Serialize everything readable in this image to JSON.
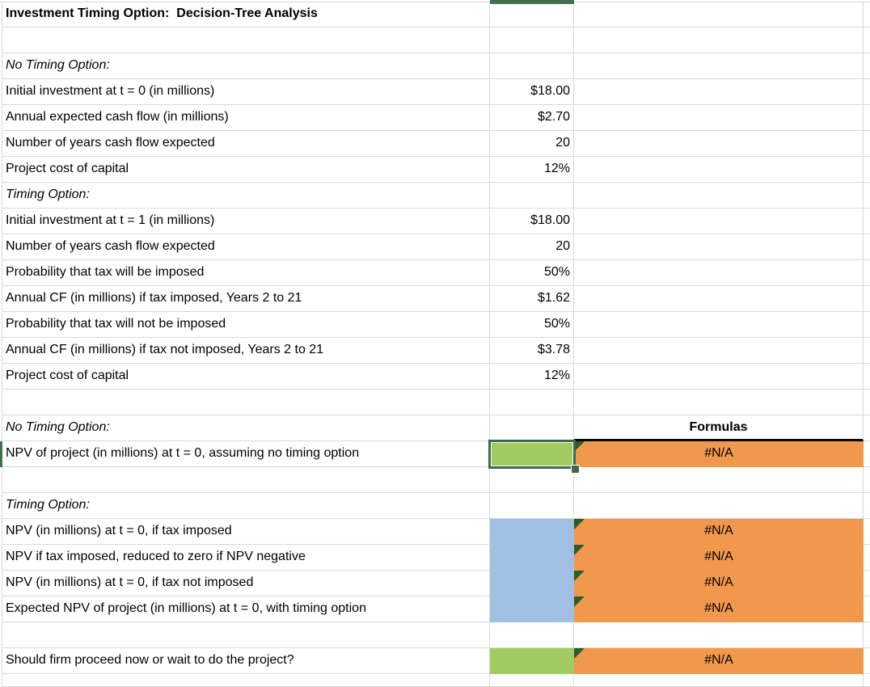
{
  "colors": {
    "grid_line": "#d9d9d9",
    "green_fill": "#a2cb64",
    "blue_fill": "#9fc0e3",
    "orange_fill": "#f0994d",
    "selection_border": "#3a6b4a",
    "corner_triangle": "#2f5a2d",
    "header_indicator": "#41704f",
    "formula_border": "#0a0a0a"
  },
  "rows": [
    {
      "label": "Investment Timing Option:  Decision-Tree Analysis"
    },
    {},
    {
      "label": "No Timing Option:"
    },
    {
      "label": "Initial investment at t = 0 (in millions)",
      "value": "$18.00"
    },
    {
      "label": "Annual expected cash flow (in millions)",
      "value": "$2.70"
    },
    {
      "label": "Number of years cash flow expected",
      "value": "20"
    },
    {
      "label": "Project cost of capital",
      "value": "12%"
    },
    {
      "label": "Timing Option:"
    },
    {
      "label": "Initial investment at t = 1 (in millions)",
      "value": "$18.00"
    },
    {
      "label": "Number of years cash flow expected",
      "value": "20"
    },
    {
      "label": "Probability that tax will be imposed",
      "value": "50%"
    },
    {
      "label": "Annual CF (in millions) if tax imposed, Years 2 to 21",
      "value": "$1.62"
    },
    {
      "label": "Probability that tax will not be imposed",
      "value": "50%"
    },
    {
      "label": "Annual CF (in millions) if tax not imposed, Years 2 to 21",
      "value": "$3.78"
    },
    {
      "label": "Project cost of capital",
      "value": "12%"
    },
    {},
    {
      "label": "No Timing Option:",
      "formula_header": "Formulas"
    },
    {
      "label": "NPV of project (in millions) at t = 0, assuming no timing option",
      "formula": "#N/A"
    },
    {},
    {
      "label": "Timing Option:"
    },
    {
      "label": "NPV (in millions) at t = 0, if tax imposed",
      "formula": "#N/A"
    },
    {
      "label": "NPV if tax imposed, reduced to zero if NPV negative",
      "formula": "#N/A"
    },
    {
      "label": "NPV (in millions) at t = 0, if tax not imposed",
      "formula": "#N/A"
    },
    {
      "label": "Expected NPV of project (in millions) at t = 0, with timing option",
      "formula": "#N/A"
    },
    {},
    {
      "label": "Should firm proceed now or wait to do the project?",
      "formula": "#N/A"
    },
    {}
  ]
}
